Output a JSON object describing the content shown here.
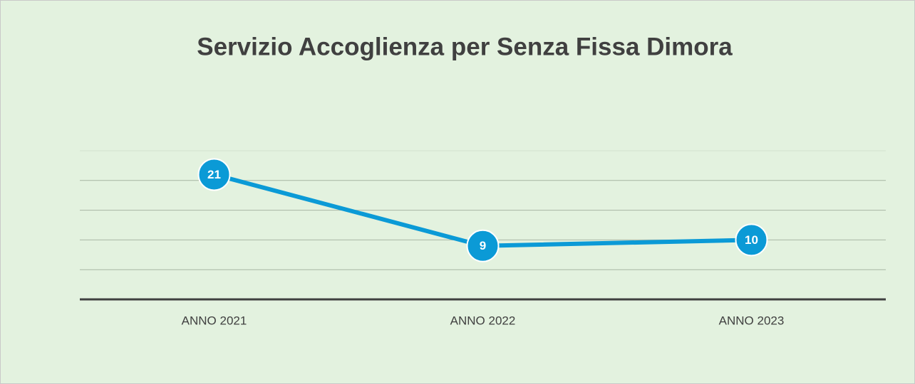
{
  "chart_data": {
    "type": "line",
    "title": "Servizio Accoglienza per Senza Fissa Dimora",
    "categories": [
      "ANNO 2021",
      "ANNO 2022",
      "ANNO 2023"
    ],
    "values": [
      21,
      9,
      10
    ],
    "color": "#0b9ad6",
    "ylim": [
      0,
      25
    ],
    "yticks": [
      0,
      5,
      10,
      15,
      20,
      25
    ],
    "grid": true
  }
}
